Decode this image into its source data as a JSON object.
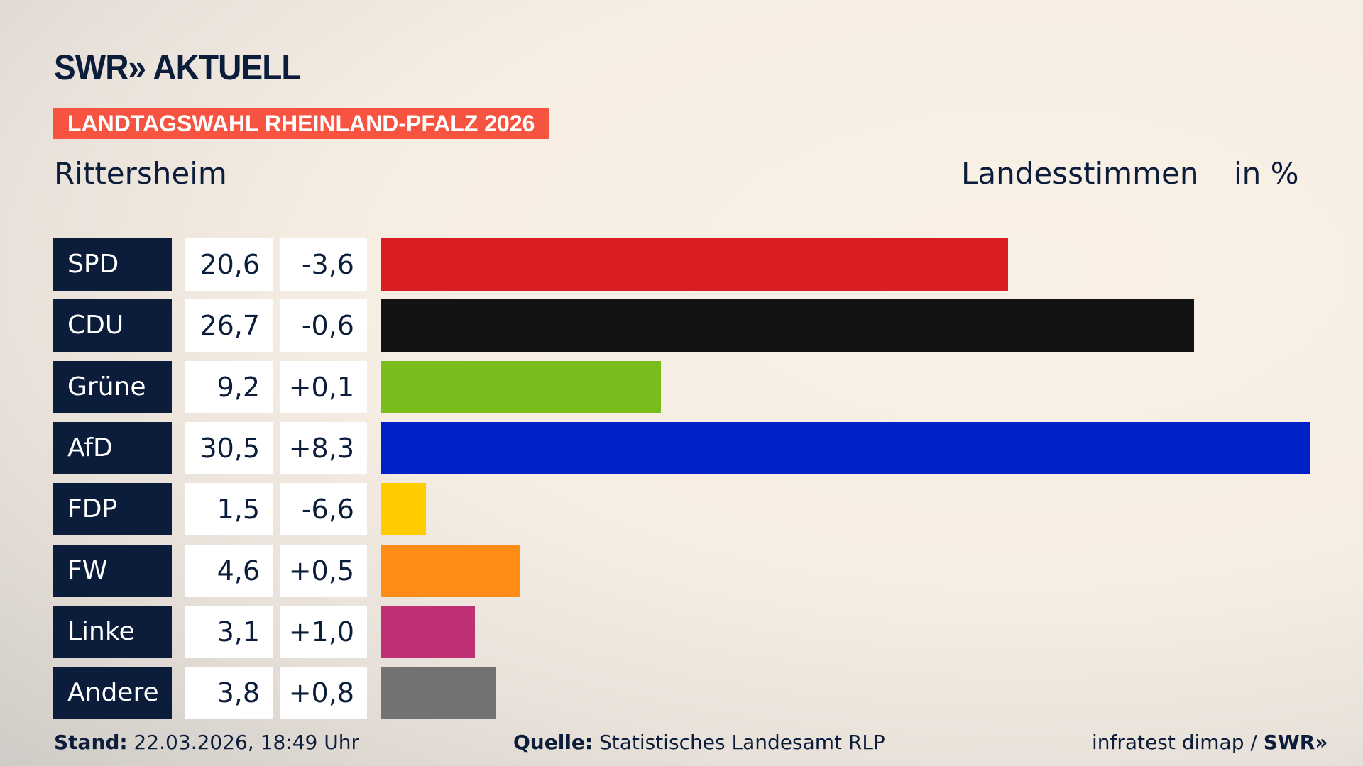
{
  "logo": "SWR» AKTUELL",
  "banner": "LANDTAGSWAHL RHEINLAND-PFALZ 2026",
  "region": "Rittersheim",
  "header": {
    "metric": "Landesstimmen",
    "unit": "in %"
  },
  "chart_data": {
    "type": "bar",
    "orientation": "horizontal",
    "categories": [
      "SPD",
      "CDU",
      "Grüne",
      "AfD",
      "FDP",
      "FW",
      "Linke",
      "Andere"
    ],
    "values": [
      20.6,
      26.7,
      9.2,
      30.5,
      1.5,
      4.6,
      3.1,
      3.8
    ],
    "value_labels": [
      "20,6",
      "26,7",
      "9,2",
      "30,5",
      "1,5",
      "4,6",
      "3,1",
      "3,8"
    ],
    "diff_labels": [
      "-3,6",
      "-0,6",
      "+0,1",
      "+8,3",
      "-6,6",
      "+0,5",
      "+1,0",
      "+0,8"
    ],
    "diffs": [
      -3.6,
      -0.6,
      0.1,
      8.3,
      -6.6,
      0.5,
      1.0,
      0.8
    ],
    "colors": [
      "#d81e20",
      "#131313",
      "#79bd1c",
      "#0020c8",
      "#ffcc00",
      "#ff8c17",
      "#bd3075",
      "#727272"
    ],
    "grid": false
  },
  "footer": {
    "stand_label": "Stand:",
    "stand": "22.03.2026, 18:49 Uhr",
    "source_label": "Quelle:",
    "source": "Statistisches Landesamt RLP",
    "credit": "infratest dimap / ",
    "credit_logo": "SWR»"
  }
}
